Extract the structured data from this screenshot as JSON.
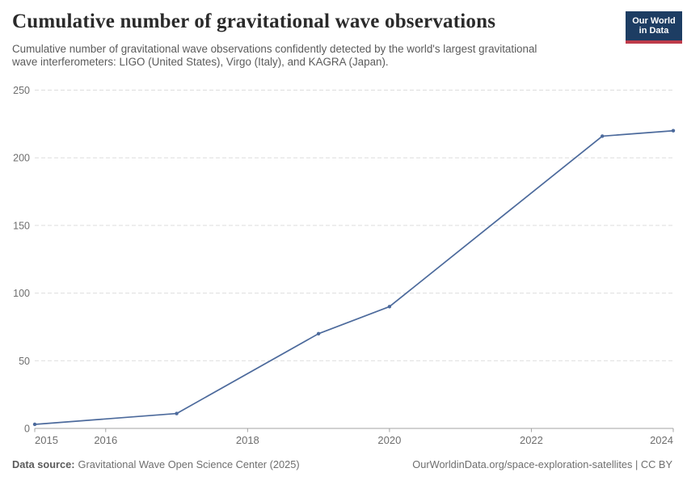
{
  "header": {
    "title": "Cumulative number of gravitational wave observations",
    "subtitle_line1": "Cumulative number of gravitational wave observations confidently detected by the world's largest gravitational",
    "subtitle_line2": "wave interferometers: LIGO (United States), Virgo (Italy), and KAGRA (Japan).",
    "logo": {
      "line1": "Our World",
      "line2": "in Data",
      "bg_color": "#1d3d63",
      "accent_color": "#be3b4a"
    }
  },
  "chart_data": {
    "type": "line",
    "title": "Cumulative number of gravitational wave observations",
    "xlabel": "",
    "ylabel": "",
    "xlim": [
      2015,
      2024
    ],
    "ylim": [
      0,
      250
    ],
    "x_ticks": [
      2015,
      2016,
      2018,
      2020,
      2022,
      2024
    ],
    "y_ticks": [
      0,
      50,
      100,
      150,
      200,
      250
    ],
    "grid": "horizontal-dashed",
    "legend": "none",
    "series": [
      {
        "name": "Cumulative gravitational wave observations",
        "color": "#4C6A9C",
        "points": [
          [
            2015,
            3
          ],
          [
            2017,
            11
          ],
          [
            2019,
            70
          ],
          [
            2020,
            90
          ],
          [
            2023,
            216
          ],
          [
            2024,
            220
          ]
        ]
      }
    ],
    "style": {
      "gridline_color": "#dedede",
      "axis_color": "#a3a3a3",
      "tick_label_color": "#6e6e6e"
    }
  },
  "footer": {
    "source_label": "Data source:",
    "source_text": "Gravitational Wave Open Science Center (2025)",
    "attribution": "OurWorldinData.org/space-exploration-satellites | CC BY"
  }
}
